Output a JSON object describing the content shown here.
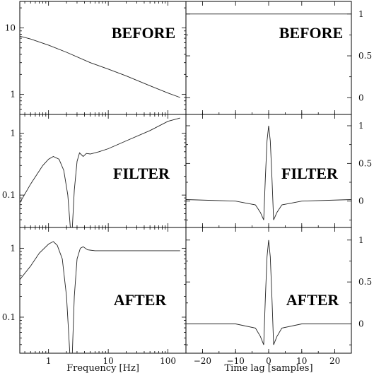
{
  "chart_data": [
    {
      "type": "line",
      "panel": "left-top",
      "label": "BEFORE",
      "xscale": "log",
      "yscale": "log",
      "xlim": [
        0.33,
        200
      ],
      "ylim": [
        0.5,
        25
      ],
      "yticks": [
        {
          "v": 1,
          "label": "1"
        },
        {
          "v": 10,
          "label": "10"
        }
      ],
      "xticks": [],
      "series": [
        {
          "x": [
            0.33,
            0.5,
            1,
            2,
            5,
            10,
            20,
            50,
            100,
            160
          ],
          "y": [
            7.5,
            6.8,
            5.5,
            4.3,
            3.0,
            2.4,
            1.9,
            1.35,
            1.05,
            0.9
          ]
        }
      ]
    },
    {
      "type": "line",
      "panel": "right-top",
      "label": "BEFORE",
      "xlim": [
        -25,
        25
      ],
      "ylim": [
        -0.2,
        1.15
      ],
      "yticks": [
        {
          "v": 0,
          "label": "0"
        },
        {
          "v": 0.5,
          "label": "0.5"
        },
        {
          "v": 1,
          "label": "1"
        }
      ],
      "xticks": [],
      "series": [
        {
          "x": [
            -25,
            25
          ],
          "y": [
            1.0,
            1.0
          ]
        }
      ]
    },
    {
      "type": "line",
      "panel": "left-middle",
      "label": "FILTER",
      "xscale": "log",
      "yscale": "log",
      "xlim": [
        0.33,
        200
      ],
      "ylim": [
        0.03,
        2.0
      ],
      "yticks": [
        {
          "v": 0.1,
          "label": "0.1"
        },
        {
          "v": 1,
          "label": "1"
        }
      ],
      "xticks": [],
      "series": [
        {
          "x": [
            0.33,
            0.5,
            0.8,
            1.0,
            1.2,
            1.5,
            1.8,
            2.1,
            2.35,
            2.5,
            2.7,
            3.0,
            3.3,
            3.8,
            4.3,
            5,
            7,
            10,
            20,
            50,
            100,
            160
          ],
          "y": [
            0.075,
            0.15,
            0.3,
            0.38,
            0.42,
            0.38,
            0.25,
            0.1,
            0.025,
            0.03,
            0.12,
            0.35,
            0.48,
            0.42,
            0.47,
            0.46,
            0.5,
            0.56,
            0.75,
            1.1,
            1.55,
            1.75
          ]
        }
      ]
    },
    {
      "type": "line",
      "panel": "right-middle",
      "label": "FILTER",
      "xlim": [
        -25,
        25
      ],
      "ylim": [
        -0.35,
        1.15
      ],
      "yticks": [
        {
          "v": 0,
          "label": "0"
        },
        {
          "v": 0.5,
          "label": "0.5"
        },
        {
          "v": 1,
          "label": "1"
        }
      ],
      "xticks": [],
      "series": [
        {
          "x": [
            -25,
            -10,
            -4,
            -2.5,
            -1.5,
            -1,
            -0.5,
            0,
            0.5,
            1,
            1.5,
            2.5,
            4,
            10,
            25
          ],
          "y": [
            0.02,
            0.0,
            -0.05,
            -0.15,
            -0.25,
            0.3,
            0.8,
            1.0,
            0.8,
            0.3,
            -0.25,
            -0.15,
            -0.05,
            0.0,
            0.02
          ]
        }
      ]
    },
    {
      "type": "line",
      "panel": "left-bottom",
      "label": "AFTER",
      "xscale": "log",
      "yscale": "log",
      "xlim": [
        0.33,
        200
      ],
      "ylim": [
        0.03,
        2.0
      ],
      "yticks": [
        {
          "v": 0.1,
          "label": "0.1"
        },
        {
          "v": 1,
          "label": "1"
        }
      ],
      "xticks": [
        {
          "v": 1,
          "label": "1"
        },
        {
          "v": 10,
          "label": "10"
        },
        {
          "v": 100,
          "label": "100"
        }
      ],
      "xlabel": "Frequency [Hz]",
      "series": [
        {
          "x": [
            0.33,
            0.5,
            0.7,
            1.0,
            1.2,
            1.4,
            1.7,
            2.0,
            2.3,
            2.5,
            2.7,
            3.0,
            3.4,
            3.8,
            4.5,
            6,
            10,
            20,
            50,
            100,
            160
          ],
          "y": [
            0.35,
            0.55,
            0.85,
            1.15,
            1.25,
            1.1,
            0.7,
            0.2,
            0.025,
            0.03,
            0.2,
            0.7,
            1.0,
            1.05,
            0.95,
            0.92,
            0.92,
            0.92,
            0.92,
            0.92,
            0.92
          ]
        }
      ]
    },
    {
      "type": "line",
      "panel": "right-bottom",
      "label": "AFTER",
      "xlim": [
        -25,
        25
      ],
      "ylim": [
        -0.35,
        1.15
      ],
      "yticks": [
        {
          "v": 0,
          "label": "0"
        },
        {
          "v": 0.5,
          "label": "0.5"
        },
        {
          "v": 1,
          "label": "1"
        }
      ],
      "xticks": [
        {
          "v": -20,
          "label": "−20"
        },
        {
          "v": -10,
          "label": "−10"
        },
        {
          "v": 0,
          "label": "0"
        },
        {
          "v": 10,
          "label": "10"
        },
        {
          "v": 20,
          "label": "20"
        }
      ],
      "xlabel": "Time lag [samples]",
      "series": [
        {
          "x": [
            -25,
            -10,
            -4,
            -2.5,
            -1.5,
            -1,
            -0.5,
            0,
            0.5,
            1,
            1.5,
            2.5,
            4,
            10,
            25
          ],
          "y": [
            0.0,
            0.0,
            -0.05,
            -0.15,
            -0.25,
            0.3,
            0.8,
            1.0,
            0.8,
            0.3,
            -0.25,
            -0.15,
            -0.05,
            0.0,
            0.0
          ]
        }
      ]
    }
  ]
}
